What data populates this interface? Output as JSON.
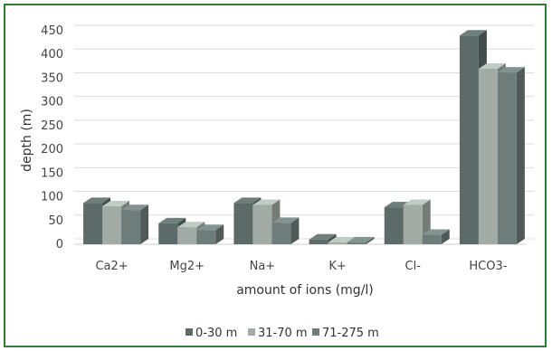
{
  "chart_data": {
    "type": "bar",
    "style": "3d-clustered",
    "title": "",
    "xlabel": "amount of ions (mg/l)",
    "ylabel": "depth (m)",
    "ylim": [
      0,
      450
    ],
    "yticks": [
      0,
      50,
      100,
      150,
      200,
      250,
      300,
      350,
      400,
      450
    ],
    "grid": true,
    "legend_position": "bottom",
    "categories": [
      "Ca2+",
      "Mg2+",
      "Na+",
      "K+",
      "Cl-",
      "HCO3-"
    ],
    "series": [
      {
        "name": "0-30 m",
        "color": "#5c6b68",
        "values": [
          87,
          44,
          87,
          10,
          78,
          440
        ]
      },
      {
        "name": "31-70 m",
        "color": "#a2aca7",
        "values": [
          80,
          36,
          83,
          4,
          83,
          370
        ]
      },
      {
        "name": "71-275 m",
        "color": "#6f7d7a",
        "values": [
          72,
          30,
          45,
          4,
          20,
          362
        ]
      }
    ]
  }
}
